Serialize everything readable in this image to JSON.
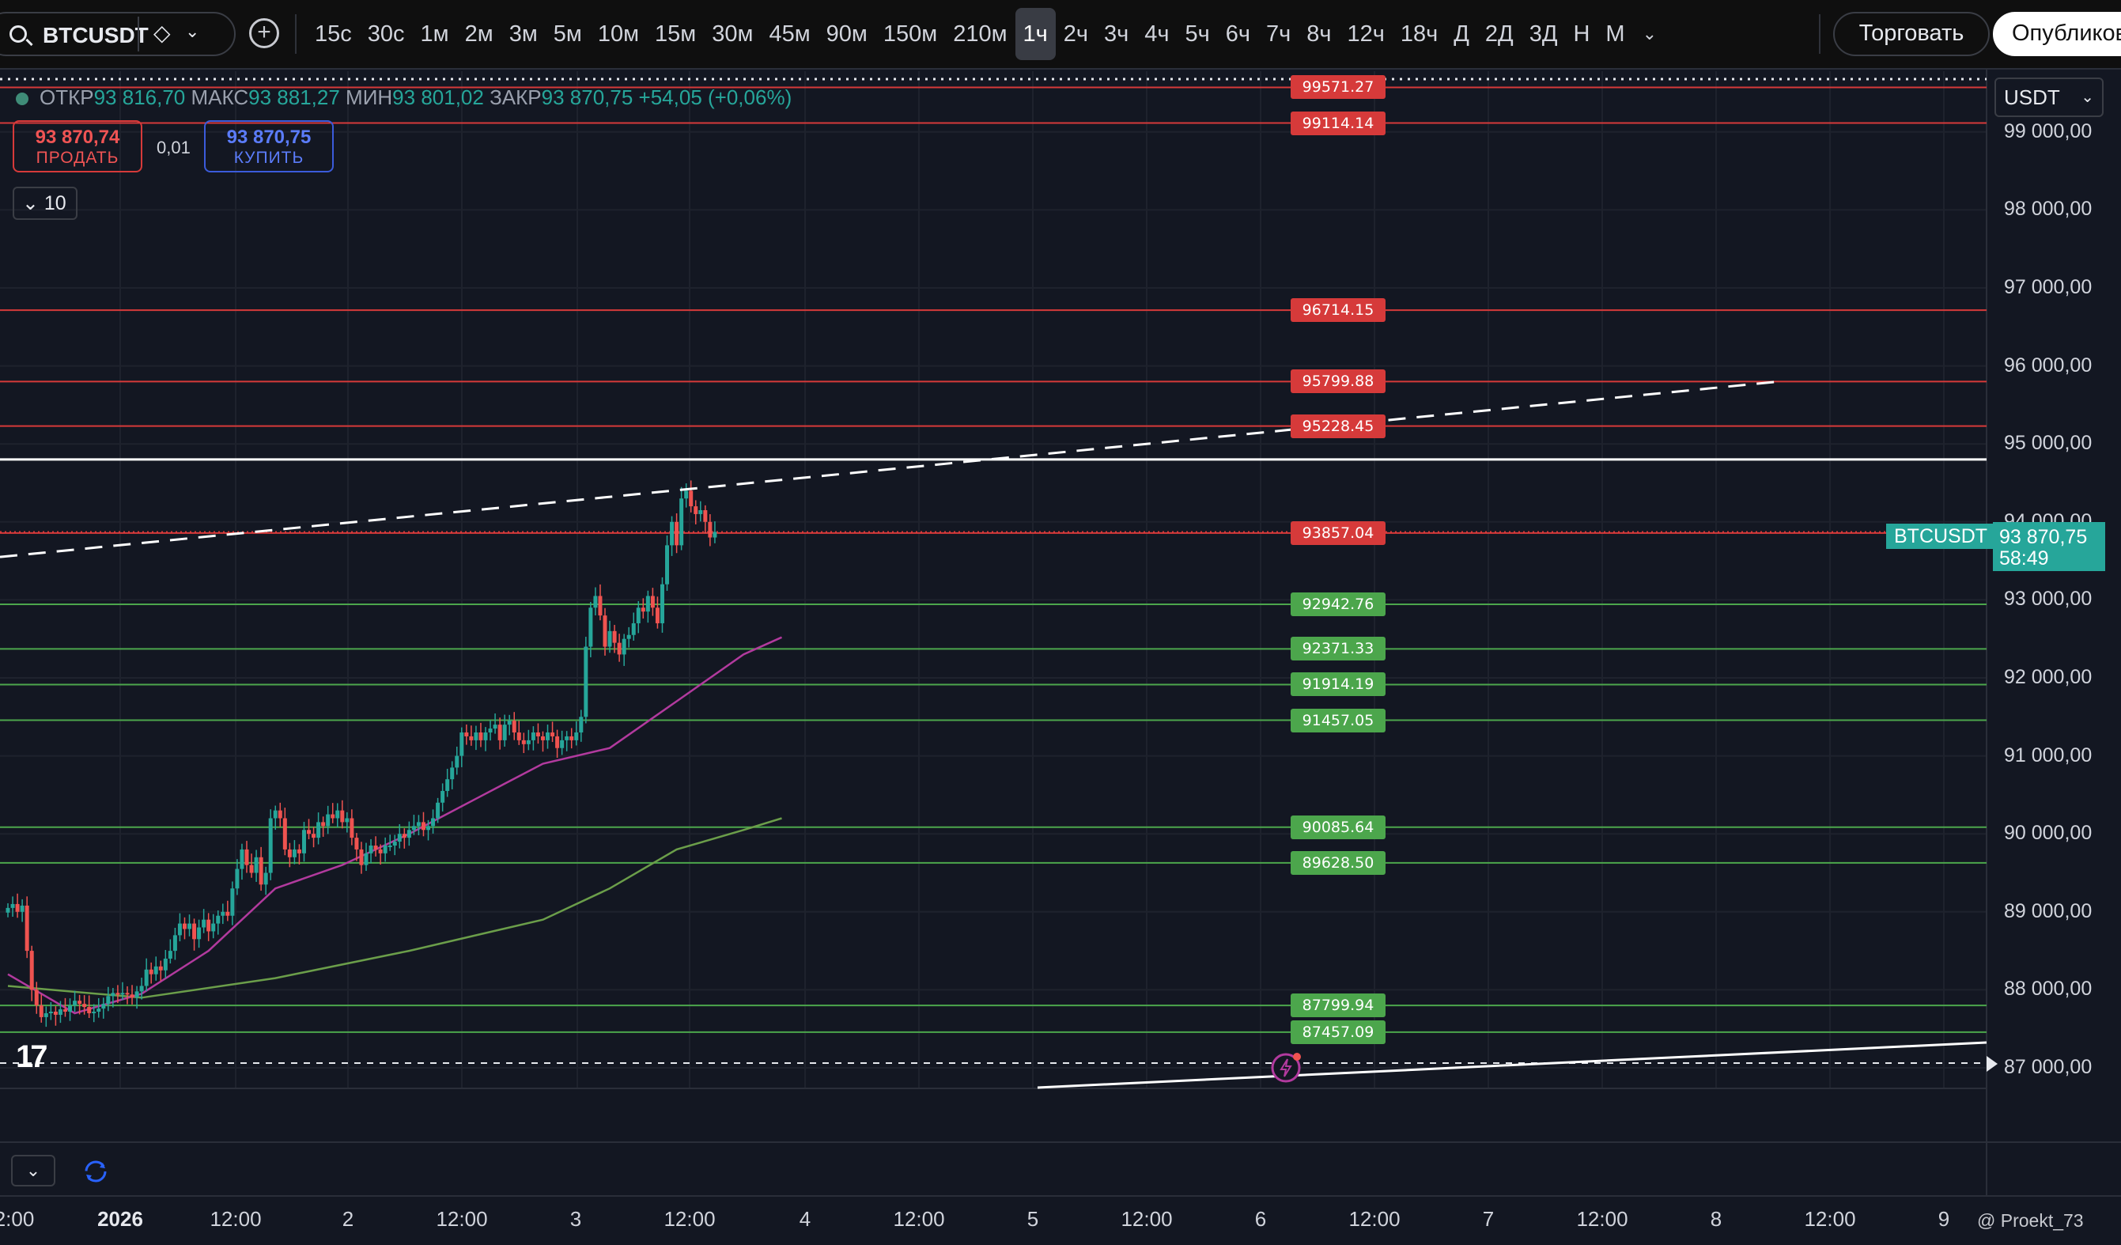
{
  "toolbar": {
    "symbol": "BTCUSDT",
    "add_symbol": "+",
    "timeframes": [
      "15с",
      "30с",
      "1м",
      "2м",
      "3м",
      "5м",
      "10м",
      "15м",
      "30м",
      "45м",
      "90м",
      "150м",
      "210м",
      "1ч",
      "2ч",
      "3ч",
      "4ч",
      "5ч",
      "6ч",
      "7ч",
      "8ч",
      "12ч",
      "18ч",
      "Д",
      "2Д",
      "3Д",
      "Н",
      "М"
    ],
    "active_timeframe": "1ч",
    "trade_label": "Торговать",
    "publish_label": "Опубликов"
  },
  "legend": {
    "open_label": "ОТКР",
    "open": "93 816,70",
    "high_label": "МАКС",
    "high": "93 881,27",
    "low_label": "МИН",
    "low": "93 801,02",
    "close_label": "ЗАКР",
    "close": "93 870,75",
    "change": "+54,05 (+0,06%)"
  },
  "trading": {
    "sell_price": "93 870,74",
    "sell_label": "ПРОДАТЬ",
    "spread": "0,01",
    "buy_price": "93 870,75",
    "buy_label": "КУПИТЬ",
    "quantity": "10"
  },
  "price_axis": {
    "currency": "USDT",
    "symbol_tag": "BTCUSDT",
    "last_price": "93 870,75",
    "countdown": "58:49",
    "ticks": [
      "99 000,00",
      "98 000,00",
      "97 000,00",
      "96 000,00",
      "95 000,00",
      "94 000,00",
      "93 000,00",
      "92 000,00",
      "91 000,00",
      "90 000,00",
      "89 000,00",
      "88 000,00",
      "87 000,00"
    ]
  },
  "time_axis": [
    "2:00",
    "2026",
    "12:00",
    "2",
    "12:00",
    "3",
    "12:00",
    "4",
    "12:00",
    "5",
    "12:00",
    "6",
    "12:00",
    "7",
    "12:00",
    "8",
    "12:00",
    "9"
  ],
  "watermark": "@ Proekt_73",
  "colors": {
    "up": "#26a69a",
    "down": "#ef5350",
    "resistance": "#d63a3a",
    "support": "#4ca64c",
    "ma_fast": "#b23a9e",
    "ma_slow": "#6b9e4a",
    "background": "#131722"
  },
  "chart_data": {
    "type": "candlestick",
    "interval": "1ч",
    "ylim": [
      86750,
      99700
    ],
    "resistance_levels": [
      99571.27,
      99114.14,
      96714.15,
      95799.88,
      95228.45,
      93857.04
    ],
    "support_levels": [
      92942.76,
      92371.33,
      91914.19,
      91457.05,
      90085.64,
      89628.5,
      87799.94,
      87457.09
    ],
    "close_path": [
      {
        "t": "01.01 00:00",
        "close": 89050
      },
      {
        "t": "01.01 01:00",
        "close": 89100
      },
      {
        "t": "01.01 02:00",
        "close": 89000
      },
      {
        "t": "01.01 03:00",
        "close": 89080
      },
      {
        "t": "01.01 04:00",
        "close": 88500
      },
      {
        "t": "01.01 05:00",
        "close": 88000
      },
      {
        "t": "01.01 06:00",
        "close": 87800
      },
      {
        "t": "01.01 07:00",
        "close": 87650
      },
      {
        "t": "01.01 08:00",
        "close": 87700
      },
      {
        "t": "01.01 09:00",
        "close": 87720
      },
      {
        "t": "01.01 10:00",
        "close": 87680
      },
      {
        "t": "01.01 11:00",
        "close": 87750
      },
      {
        "t": "01.01 12:00",
        "close": 87720
      },
      {
        "t": "01.01 13:00",
        "close": 87800
      },
      {
        "t": "01.01 14:00",
        "close": 87860
      },
      {
        "t": "01.01 15:00",
        "close": 87820
      },
      {
        "t": "01.01 16:00",
        "close": 87780
      },
      {
        "t": "01.01 17:00",
        "close": 87700
      },
      {
        "t": "01.01 18:00",
        "close": 87720
      },
      {
        "t": "01.01 19:00",
        "close": 87760
      },
      {
        "t": "01.01 20:00",
        "close": 87820
      },
      {
        "t": "01.01 21:00",
        "close": 87920
      },
      {
        "t": "01.01 22:00",
        "close": 87960
      },
      {
        "t": "01.01 23:00",
        "close": 87940
      },
      {
        "t": "02.01 00:00",
        "close": 87960
      },
      {
        "t": "02.01 01:00",
        "close": 87940
      },
      {
        "t": "02.01 02:00",
        "close": 87900
      },
      {
        "t": "02.01 03:00",
        "close": 87980
      },
      {
        "t": "02.01 04:00",
        "close": 88050
      },
      {
        "t": "02.01 05:00",
        "close": 88260
      },
      {
        "t": "02.01 06:00",
        "close": 88200
      },
      {
        "t": "02.01 07:00",
        "close": 88300
      },
      {
        "t": "02.01 08:00",
        "close": 88250
      },
      {
        "t": "02.01 09:00",
        "close": 88400
      },
      {
        "t": "02.01 10:00",
        "close": 88500
      },
      {
        "t": "02.01 11:00",
        "close": 88700
      },
      {
        "t": "02.01 12:00",
        "close": 88850
      },
      {
        "t": "02.01 13:00",
        "close": 88780
      },
      {
        "t": "02.01 14:00",
        "close": 88850
      },
      {
        "t": "02.01 15:00",
        "close": 88650
      },
      {
        "t": "02.01 16:00",
        "close": 88800
      },
      {
        "t": "02.01 17:00",
        "close": 88900
      },
      {
        "t": "02.01 18:00",
        "close": 88750
      },
      {
        "t": "02.01 19:00",
        "close": 88850
      },
      {
        "t": "02.01 20:00",
        "close": 88950
      },
      {
        "t": "02.01 21:00",
        "close": 89000
      },
      {
        "t": "02.01 22:00",
        "close": 88950
      },
      {
        "t": "02.01 23:00",
        "close": 89300
      },
      {
        "t": "03.01 00:00",
        "close": 89550
      },
      {
        "t": "03.01 01:00",
        "close": 89800
      },
      {
        "t": "03.01 02:00",
        "close": 89600
      },
      {
        "t": "03.01 03:00",
        "close": 89500
      },
      {
        "t": "03.01 04:00",
        "close": 89700
      },
      {
        "t": "03.01 05:00",
        "close": 89350
      },
      {
        "t": "03.01 06:00",
        "close": 89500
      },
      {
        "t": "03.01 07:00",
        "close": 90200
      },
      {
        "t": "03.01 08:00",
        "close": 90300
      },
      {
        "t": "03.01 09:00",
        "close": 90200
      },
      {
        "t": "03.01 10:00",
        "close": 89800
      },
      {
        "t": "03.01 11:00",
        "close": 89700
      },
      {
        "t": "03.01 12:00",
        "close": 89800
      },
      {
        "t": "03.01 13:00",
        "close": 89750
      },
      {
        "t": "03.01 14:00",
        "close": 90050
      },
      {
        "t": "03.01 15:00",
        "close": 90000
      },
      {
        "t": "03.01 16:00",
        "close": 89950
      },
      {
        "t": "03.01 17:00",
        "close": 90150
      },
      {
        "t": "03.01 18:00",
        "close": 90100
      },
      {
        "t": "03.01 19:00",
        "close": 90250
      },
      {
        "t": "03.01 20:00",
        "close": 90200
      },
      {
        "t": "03.01 21:00",
        "close": 90300
      },
      {
        "t": "03.01 22:00",
        "close": 90150
      },
      {
        "t": "03.01 23:00",
        "close": 90200
      },
      {
        "t": "04.01 00:00",
        "close": 89950
      },
      {
        "t": "04.01 01:00",
        "close": 89800
      },
      {
        "t": "04.01 02:00",
        "close": 89600
      },
      {
        "t": "04.01 03:00",
        "close": 89750
      },
      {
        "t": "04.01 04:00",
        "close": 89850
      },
      {
        "t": "04.01 05:00",
        "close": 89800
      },
      {
        "t": "04.01 06:00",
        "close": 89750
      },
      {
        "t": "04.01 07:00",
        "close": 89850
      },
      {
        "t": "04.01 08:00",
        "close": 89850
      },
      {
        "t": "04.01 09:00",
        "close": 89900
      },
      {
        "t": "04.01 10:00",
        "close": 90000
      },
      {
        "t": "04.01 11:00",
        "close": 89950
      },
      {
        "t": "04.01 12:00",
        "close": 90050
      },
      {
        "t": "04.01 13:00",
        "close": 90100
      },
      {
        "t": "04.01 14:00",
        "close": 90150
      },
      {
        "t": "04.01 15:00",
        "close": 90050
      },
      {
        "t": "04.01 16:00",
        "close": 90100
      },
      {
        "t": "04.01 17:00",
        "close": 90200
      },
      {
        "t": "04.01 18:00",
        "close": 90400
      },
      {
        "t": "04.01 19:00",
        "close": 90550
      },
      {
        "t": "04.01 20:00",
        "close": 90700
      },
      {
        "t": "04.01 21:00",
        "close": 90850
      },
      {
        "t": "04.01 22:00",
        "close": 91000
      },
      {
        "t": "04.01 23:00",
        "close": 91300
      },
      {
        "t": "05.01 00:00",
        "close": 91250
      },
      {
        "t": "05.01 01:00",
        "close": 91200
      },
      {
        "t": "05.01 02:00",
        "close": 91300
      },
      {
        "t": "05.01 03:00",
        "close": 91200
      },
      {
        "t": "05.01 04:00",
        "close": 91300
      },
      {
        "t": "05.01 05:00",
        "close": 91350
      },
      {
        "t": "05.01 06:00",
        "close": 91400
      },
      {
        "t": "05.01 07:00",
        "close": 91200
      },
      {
        "t": "05.01 08:00",
        "close": 91400
      },
      {
        "t": "05.01 09:00",
        "close": 91450
      },
      {
        "t": "05.01 10:00",
        "close": 91300
      },
      {
        "t": "05.01 11:00",
        "close": 91200
      },
      {
        "t": "05.01 12:00",
        "close": 91150
      },
      {
        "t": "05.01 13:00",
        "close": 91200
      },
      {
        "t": "05.01 14:00",
        "close": 91300
      },
      {
        "t": "05.01 15:00",
        "close": 91250
      },
      {
        "t": "05.01 16:00",
        "close": 91200
      },
      {
        "t": "05.01 17:00",
        "close": 91300
      },
      {
        "t": "05.01 18:00",
        "close": 91250
      },
      {
        "t": "05.01 19:00",
        "close": 91100
      },
      {
        "t": "05.01 20:00",
        "close": 91200
      },
      {
        "t": "05.01 21:00",
        "close": 91250
      },
      {
        "t": "05.01 22:00",
        "close": 91200
      },
      {
        "t": "05.01 23:00",
        "close": 91300
      },
      {
        "t": "06.01 00:00",
        "close": 91500
      },
      {
        "t": "06.01 01:00",
        "close": 92400
      },
      {
        "t": "06.01 02:00",
        "close": 92900
      },
      {
        "t": "06.01 03:00",
        "close": 93050
      },
      {
        "t": "06.01 04:00",
        "close": 92800
      },
      {
        "t": "06.01 05:00",
        "close": 92400
      },
      {
        "t": "06.01 06:00",
        "close": 92600
      },
      {
        "t": "06.01 07:00",
        "close": 92450
      },
      {
        "t": "06.01 08:00",
        "close": 92300
      },
      {
        "t": "06.01 09:00",
        "close": 92500
      },
      {
        "t": "06.01 10:00",
        "close": 92550
      },
      {
        "t": "06.01 11:00",
        "close": 92700
      },
      {
        "t": "06.01 12:00",
        "close": 92900
      },
      {
        "t": "06.01 13:00",
        "close": 92850
      },
      {
        "t": "06.01 14:00",
        "close": 93050
      },
      {
        "t": "06.01 15:00",
        "close": 92900
      },
      {
        "t": "06.01 16:00",
        "close": 92700
      },
      {
        "t": "06.01 17:00",
        "close": 93200
      },
      {
        "t": "06.01 18:00",
        "close": 93700
      },
      {
        "t": "06.01 19:00",
        "close": 94000
      },
      {
        "t": "06.01 20:00",
        "close": 93700
      },
      {
        "t": "06.01 21:00",
        "close": 94300
      },
      {
        "t": "06.01 22:00",
        "close": 94400
      },
      {
        "t": "06.01 23:00",
        "close": 94200
      },
      {
        "t": "07.01 00:00",
        "close": 94100
      },
      {
        "t": "07.01 01:00",
        "close": 94150
      },
      {
        "t": "07.01 02:00",
        "close": 94000
      },
      {
        "t": "07.01 03:00",
        "close": 93800
      },
      {
        "t": "07.01 04:00",
        "close": 93870.75
      }
    ],
    "ma_fast": [
      [
        0,
        88200
      ],
      [
        14,
        87700
      ],
      [
        28,
        87950
      ],
      [
        42,
        88500
      ],
      [
        56,
        89300
      ],
      [
        70,
        89600
      ],
      [
        84,
        90000
      ],
      [
        98,
        90450
      ],
      [
        112,
        90900
      ],
      [
        126,
        91100
      ],
      [
        140,
        91700
      ],
      [
        154,
        92300
      ],
      [
        162,
        92520
      ]
    ],
    "ma_slow": [
      [
        0,
        88050
      ],
      [
        28,
        87900
      ],
      [
        56,
        88150
      ],
      [
        84,
        88500
      ],
      [
        112,
        88900
      ],
      [
        126,
        89300
      ],
      [
        140,
        89800
      ],
      [
        154,
        90050
      ],
      [
        162,
        90200
      ]
    ]
  }
}
